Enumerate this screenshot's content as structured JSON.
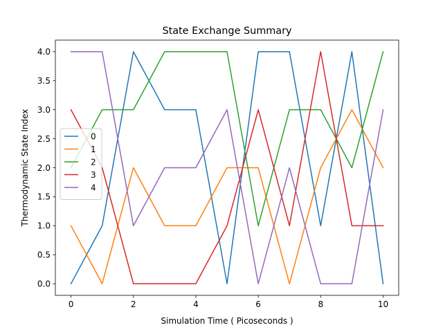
{
  "chart_data": {
    "type": "line",
    "title": "State Exchange Summary",
    "xlabel": "Simulation Time ( Picoseconds )",
    "ylabel": "Thermodynamic State Index",
    "xlim": [
      -0.5,
      10.5
    ],
    "ylim": [
      -0.2,
      4.2
    ],
    "xticks": [
      0,
      2,
      4,
      6,
      8,
      10
    ],
    "yticks": [
      0.0,
      0.5,
      1.0,
      1.5,
      2.0,
      2.5,
      3.0,
      3.5,
      4.0
    ],
    "ytick_labels": [
      "0.0",
      "0.5",
      "1.0",
      "1.5",
      "2.0",
      "2.5",
      "3.0",
      "3.5",
      "4.0"
    ],
    "grid": false,
    "legend_position": "center-left",
    "x": [
      0,
      1,
      2,
      3,
      4,
      5,
      6,
      7,
      8,
      9,
      10
    ],
    "series": [
      {
        "name": "0",
        "color": "#1f77b4",
        "values": [
          0,
          1,
          4,
          3,
          3,
          0,
          4,
          4,
          1,
          4,
          0
        ]
      },
      {
        "name": "1",
        "color": "#ff7f0e",
        "values": [
          1,
          0,
          2,
          1,
          1,
          2,
          2,
          0,
          2,
          3,
          2
        ]
      },
      {
        "name": "2",
        "color": "#2ca02c",
        "values": [
          2,
          3,
          3,
          4,
          4,
          4,
          1,
          3,
          3,
          2,
          4
        ]
      },
      {
        "name": "3",
        "color": "#d62728",
        "values": [
          3,
          2,
          0,
          0,
          0,
          1,
          3,
          1,
          4,
          1,
          1
        ]
      },
      {
        "name": "4",
        "color": "#9467bd",
        "values": [
          4,
          4,
          1,
          2,
          2,
          3,
          0,
          2,
          0,
          0,
          3
        ]
      }
    ]
  }
}
